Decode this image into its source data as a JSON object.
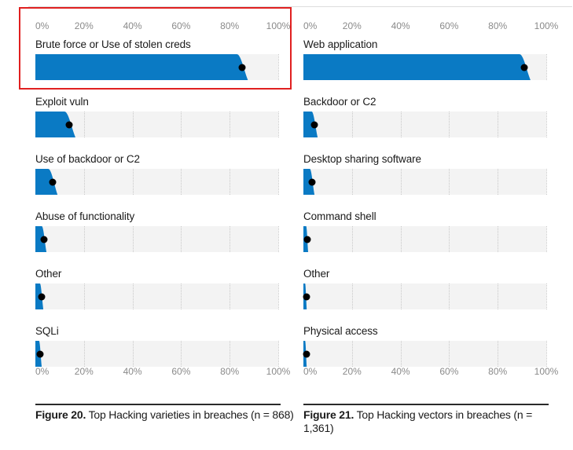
{
  "colors": {
    "bar": "#0a7ac4",
    "dot": "#000000",
    "highlight": "#e02020"
  },
  "chart_data": [
    {
      "type": "bar",
      "orientation": "horizontal",
      "title": "Top Hacking varieties in breaches (n = 868)",
      "figure_label": "Figure 20.",
      "caption_text": "Top Hacking varieties in breaches (n = 868)",
      "x_ticks": [
        "0%",
        "20%",
        "40%",
        "60%",
        "80%",
        "100%"
      ],
      "xlim": [
        0,
        100
      ],
      "grid": true,
      "categories": [
        "Brute force or Use of stolen creds",
        "Exploit vuln",
        "Use of backdoor or C2",
        "Abuse of functionality",
        "Other",
        "SQLi"
      ],
      "values": [
        85,
        14,
        7,
        3.5,
        2.5,
        2
      ]
    },
    {
      "type": "bar",
      "orientation": "horizontal",
      "title": "Top Hacking vectors in breaches (n = 1,361)",
      "figure_label": "Figure 21.",
      "caption_text": "Top Hacking vectors in breaches (n = 1,361)",
      "x_ticks": [
        "0%",
        "20%",
        "40%",
        "60%",
        "80%",
        "100%"
      ],
      "xlim": [
        0,
        100
      ],
      "grid": true,
      "categories": [
        "Web application",
        "Backdoor or C2",
        "Desktop sharing software",
        "Command shell",
        "Other",
        "Physical access"
      ],
      "values": [
        91,
        4.5,
        3.5,
        1.5,
        1,
        1
      ]
    }
  ]
}
